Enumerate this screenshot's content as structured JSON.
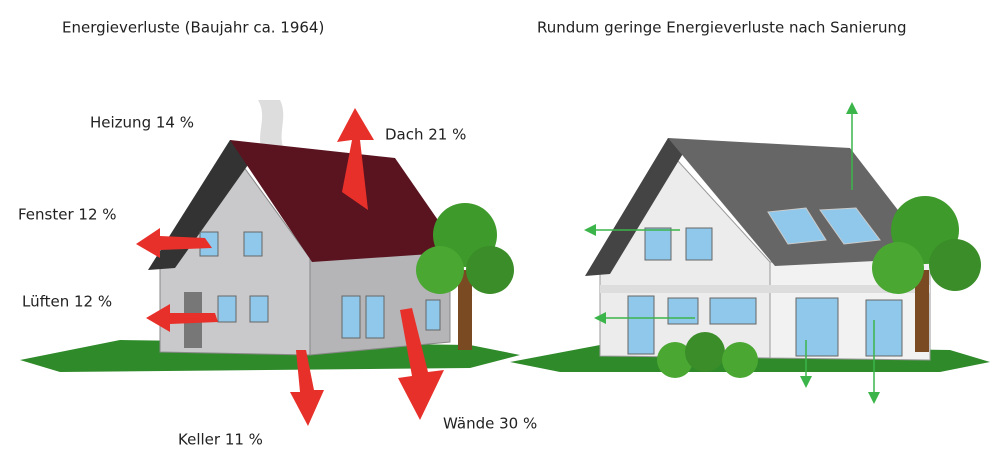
{
  "left": {
    "title": "Energieverluste (Baujahr ca. 1964)",
    "labels": [
      "Heizung 14 %",
      "Dach 21 %",
      "Fenster 12 %",
      "Lüften 12 %",
      "Keller 11 %",
      "Wände 30 %"
    ]
  },
  "right": {
    "title": "Rundum geringe Energieverluste nach Sanierung"
  }
}
